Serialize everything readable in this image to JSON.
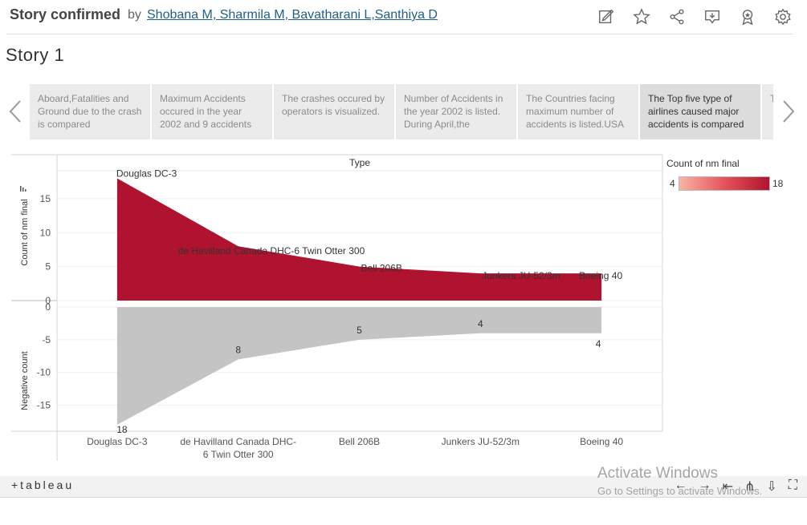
{
  "header": {
    "title": "Story confirmed",
    "by": "by",
    "authors": "Shobana M, Sharmila M, Bavatharani L,Santhiya D"
  },
  "story_name": "Story 1",
  "story_points": [
    "Aboard,Fatalities and Ground due to the crash is compared",
    "Maximum Accidents occured in the year 2002 and 9 accidents",
    "The crashes occured by operators is visualized.",
    "Number of Accidents in the year 2002 is listed. During April,the",
    "The Countries facing maximum number of accidents is listed.USA",
    "The Top five type of airlines caused major accidents is compared",
    "T f t"
  ],
  "chart_data": {
    "type": "area",
    "column_header": "Type",
    "categories": [
      "Douglas DC-3",
      "de Havilland Canada DHC-6 Twin Otter 300",
      "Bell 206B",
      "Junkers JU-52/3m",
      "Boeing 40"
    ],
    "x_tick_labels": [
      "Douglas DC-3",
      "de Havilland Canada DHC-6 Twin Otter 300",
      "Bell 206B",
      "Junkers JU-52/3m",
      "Boeing 40"
    ],
    "top_panel": {
      "ylabel": "Count of nm final",
      "values": [
        18,
        8,
        5,
        4,
        4
      ],
      "ylim": [
        0,
        19
      ],
      "yticks": [
        0,
        5,
        10,
        15
      ],
      "labels": [
        "Douglas DC-3",
        "de Havilland Canada DHC-6 Twin Otter 300",
        "Bell 206B",
        "Junkers JU-52/3m",
        "Boeing 40"
      ],
      "color": "#b0132f"
    },
    "bottom_panel": {
      "ylabel": "Negative count",
      "values": [
        -18,
        -8,
        -5,
        -4,
        -4
      ],
      "ylim": [
        -19,
        1
      ],
      "yticks": [
        0,
        -5,
        -10,
        -15
      ],
      "labels": [
        "18",
        "8",
        "5",
        "4",
        "4"
      ],
      "color": "#c4c4c4"
    },
    "legend": {
      "title": "Count of nm final",
      "min": "4",
      "max": "18",
      "colors": [
        "#f9b4a4",
        "#b0132f"
      ]
    }
  },
  "footer": {
    "logo": "+tableau"
  },
  "watermark": {
    "line1": "Activate Windows",
    "line2": "Go to Settings to activate Windows."
  },
  "icons": [
    "edit-icon",
    "star-icon",
    "share-icon",
    "download-icon",
    "badge-icon",
    "gear-icon",
    "prev-arrow-icon",
    "next-arrow-icon"
  ]
}
